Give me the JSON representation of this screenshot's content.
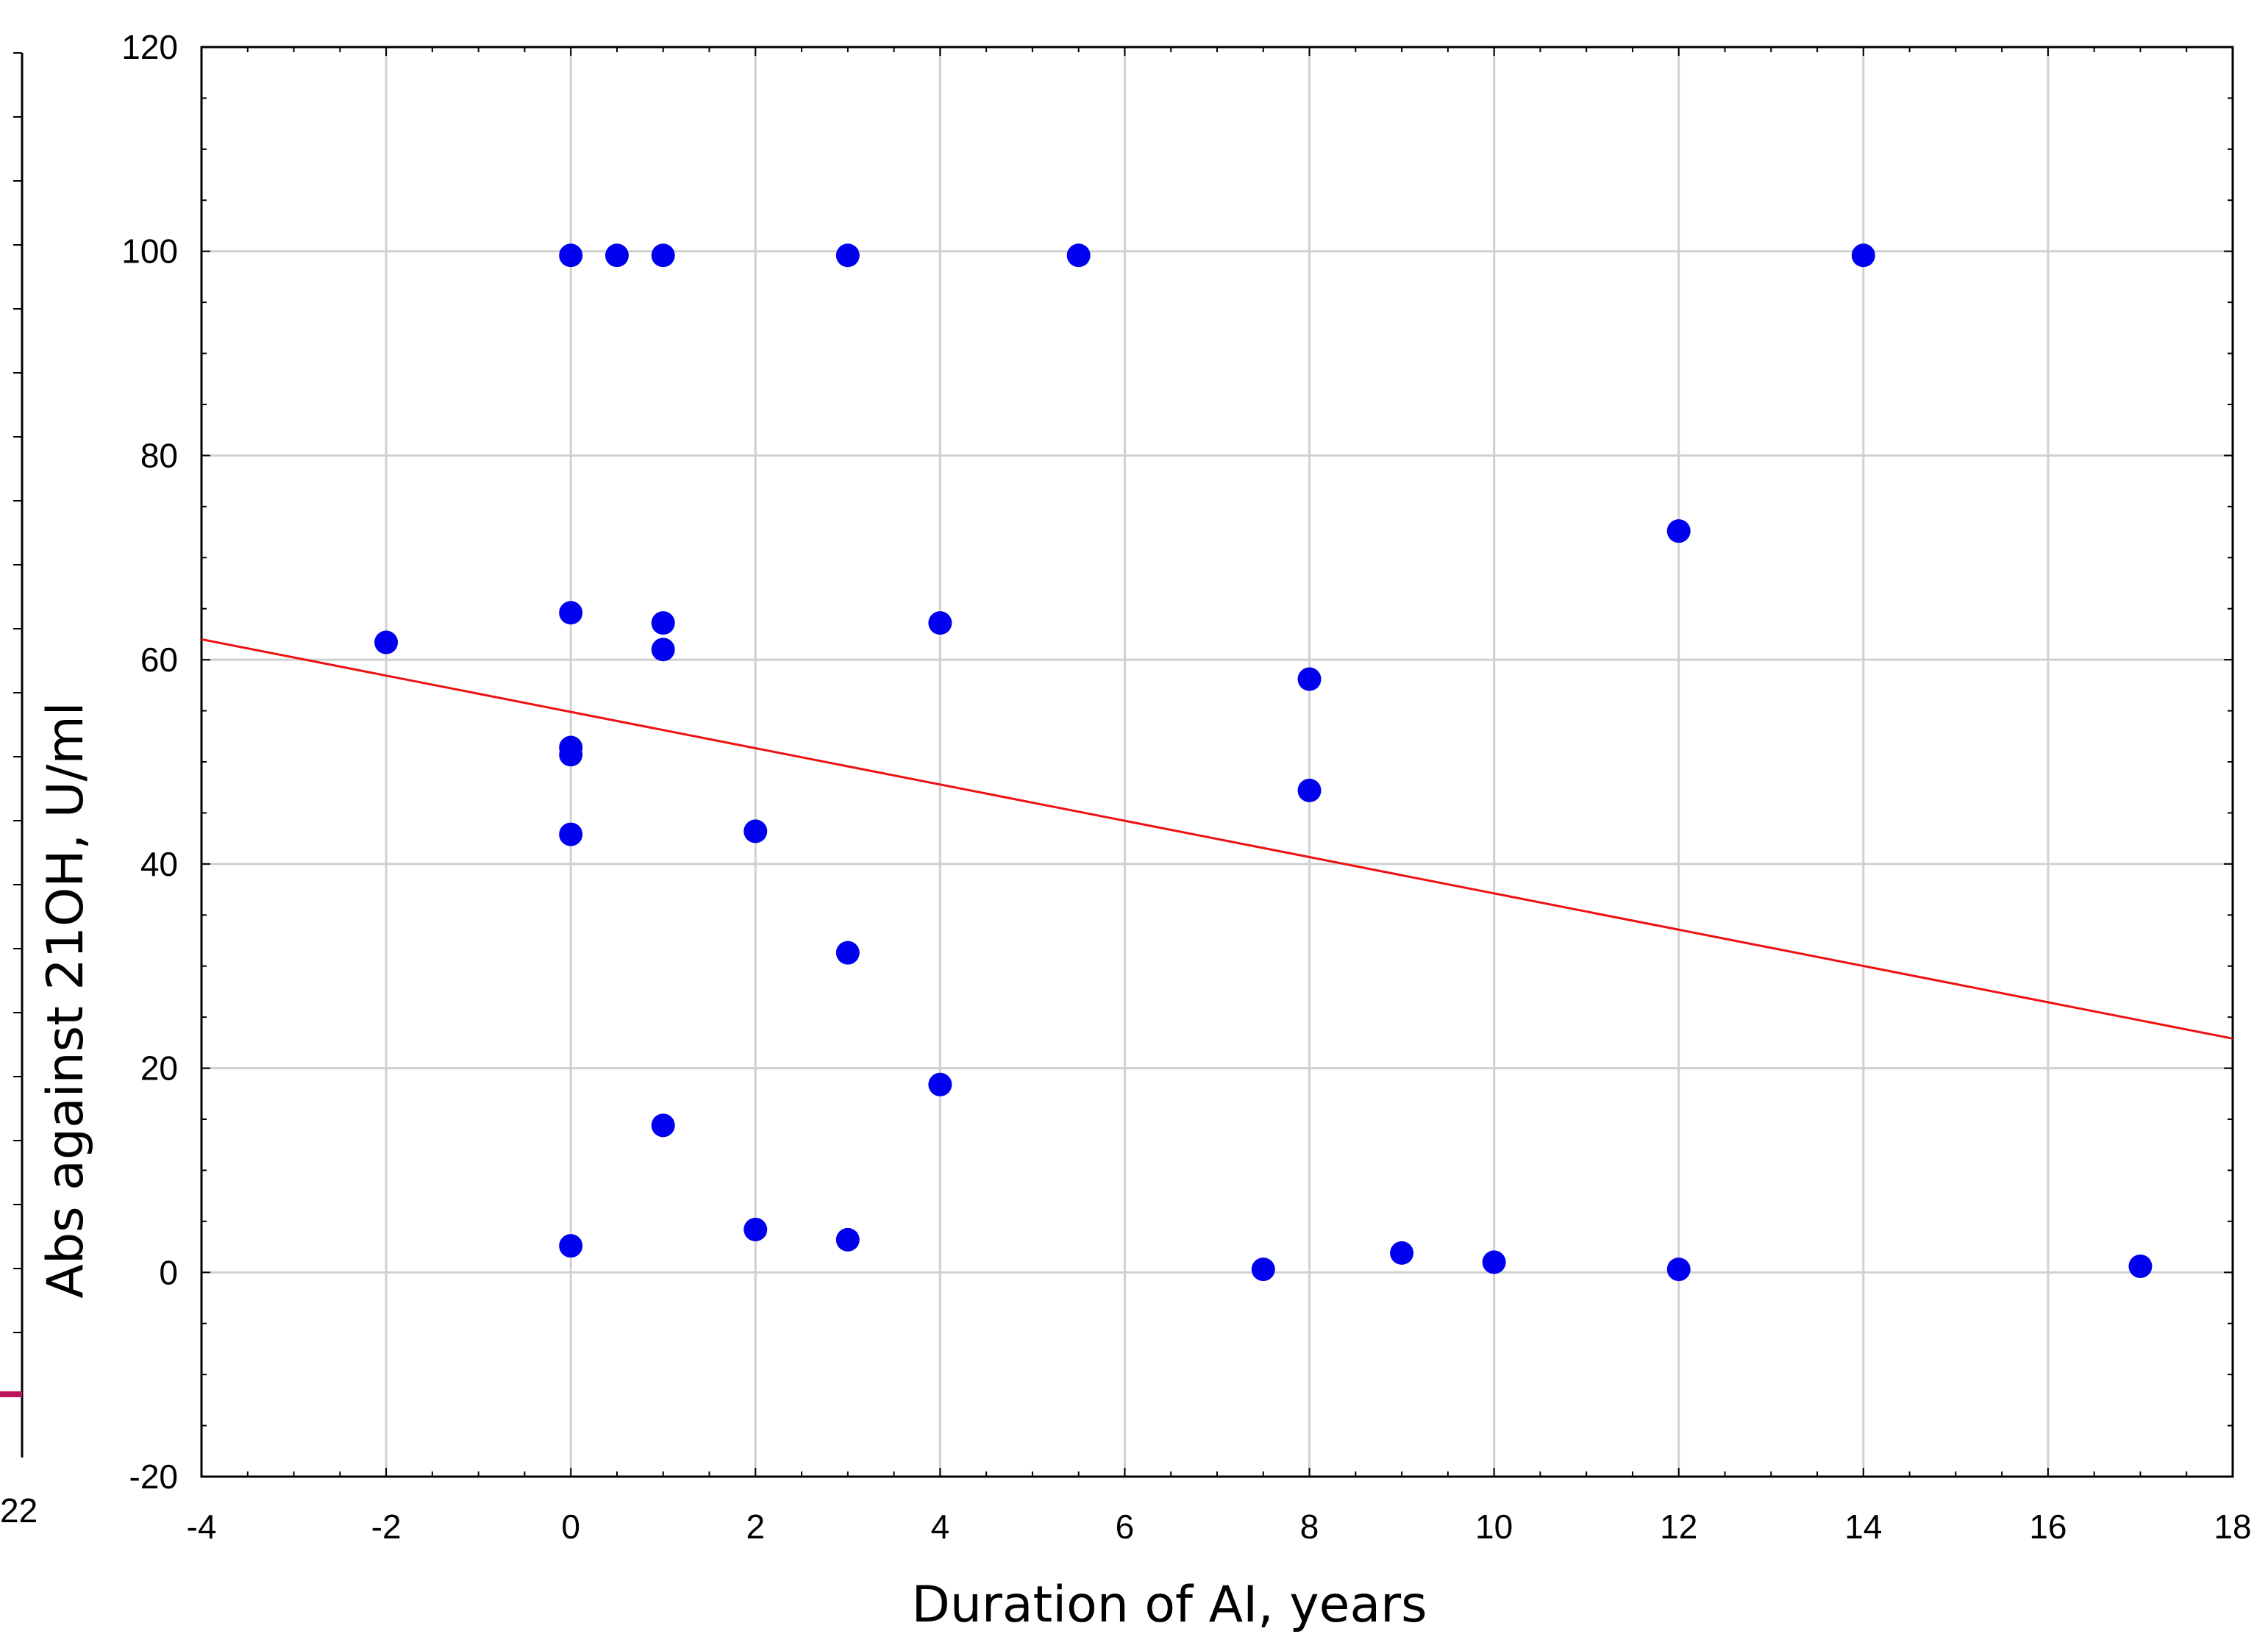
{
  "chart_data": {
    "type": "scatter",
    "title": "",
    "xlabel": "Duration of AI, years",
    "ylabel": "Abs against 21OH, U/ml",
    "xlim": [
      -4,
      18
    ],
    "ylim": [
      -20,
      120
    ],
    "xticks": [
      -4,
      -2,
      0,
      2,
      4,
      6,
      8,
      10,
      12,
      14,
      16,
      18
    ],
    "yticks": [
      -20,
      0,
      20,
      40,
      60,
      80,
      100,
      120
    ],
    "grid": true,
    "point_color": "#0000ee",
    "line_color": "#ee1111",
    "points": [
      {
        "x": 0,
        "y": 99.6
      },
      {
        "x": 0.5,
        "y": 99.6
      },
      {
        "x": 1,
        "y": 99.6
      },
      {
        "x": 3,
        "y": 99.6
      },
      {
        "x": 5.5,
        "y": 99.6
      },
      {
        "x": 14,
        "y": 99.6
      },
      {
        "x": 12,
        "y": 72.6
      },
      {
        "x": 0,
        "y": 64.6
      },
      {
        "x": 1,
        "y": 63.6
      },
      {
        "x": 4,
        "y": 63.6
      },
      {
        "x": -2,
        "y": 61.7
      },
      {
        "x": 1,
        "y": 61.0
      },
      {
        "x": 8,
        "y": 58.1
      },
      {
        "x": 0,
        "y": 51.4
      },
      {
        "x": 0,
        "y": 50.7
      },
      {
        "x": 8,
        "y": 47.2
      },
      {
        "x": 2,
        "y": 43.2
      },
      {
        "x": 0,
        "y": 42.9
      },
      {
        "x": 3,
        "y": 31.3
      },
      {
        "x": 4,
        "y": 18.4
      },
      {
        "x": 1,
        "y": 14.4
      },
      {
        "x": 2,
        "y": 4.2
      },
      {
        "x": 3,
        "y": 3.2
      },
      {
        "x": 0,
        "y": 2.6
      },
      {
        "x": 9,
        "y": 1.9
      },
      {
        "x": 10,
        "y": 1.0
      },
      {
        "x": 17,
        "y": 0.6
      },
      {
        "x": 7.5,
        "y": 0.3
      },
      {
        "x": 12,
        "y": 0.3
      }
    ],
    "trendline": {
      "x": [
        -4,
        18
      ],
      "y": [
        62.0,
        22.9
      ]
    },
    "left_panel_fragment": {
      "visible_tick_label": "22",
      "marker_color": "#c0145a"
    }
  }
}
